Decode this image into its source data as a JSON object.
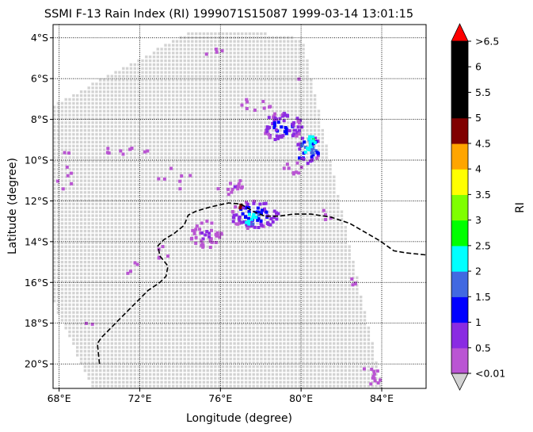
{
  "chart_data": {
    "type": "heatmap",
    "title": "SSMI F-13 Rain Index (RI) 1999071S15087 1999-03-14 13:01:15",
    "xlabel": "Longitude (degree)",
    "ylabel": "Latitude (degree)",
    "xlim": [
      67.7,
      86.2
    ],
    "ylim": [
      -21.2,
      -3.35
    ],
    "x_ticks": [
      {
        "value": 68,
        "label": "68°E"
      },
      {
        "value": 72,
        "label": "72°E"
      },
      {
        "value": 76,
        "label": "76°E"
      },
      {
        "value": 80,
        "label": "80°E"
      },
      {
        "value": 84,
        "label": "84°E"
      }
    ],
    "y_ticks": [
      {
        "value": -4,
        "label": "4°S"
      },
      {
        "value": -6,
        "label": "6°S"
      },
      {
        "value": -8,
        "label": "8°S"
      },
      {
        "value": -10,
        "label": "10°S"
      },
      {
        "value": -12,
        "label": "12°S"
      },
      {
        "value": -14,
        "label": "14°S"
      },
      {
        "value": -16,
        "label": "16°S"
      },
      {
        "value": -18,
        "label": "18°S"
      },
      {
        "value": -20,
        "label": "20°S"
      }
    ],
    "grid": true,
    "no_rain_color": "#d3d3d3",
    "colorbar": {
      "label": "RI",
      "bounds": [
        0.01,
        0.5,
        1,
        1.5,
        2,
        2.5,
        3,
        3.5,
        4,
        4.5,
        5,
        5.5,
        6,
        6.5
      ],
      "tick_labels": [
        "<0.01",
        "0.5",
        "1",
        "1.5",
        "2",
        "2.5",
        "3",
        "3.5",
        "4",
        "4.5",
        "5",
        "5.5",
        "6",
        ">6.5"
      ],
      "colors": [
        "#ba55d3",
        "#8a2be2",
        "#0000ff",
        "#4169e1",
        "#00ffff",
        "#00ff00",
        "#7fff00",
        "#ffff00",
        "#ffa500",
        "#800000",
        "#000000",
        "#000000",
        "#000000"
      ],
      "under_color": "#d3d3d3",
      "over_color": "#ff0000"
    },
    "swath": {
      "corners": [
        [
          67.7,
          -7.2
        ],
        [
          74.5,
          -3.6
        ],
        [
          77.5,
          -3.6
        ],
        [
          80.0,
          -4.0
        ],
        [
          84.0,
          -21.2
        ],
        [
          69.6,
          -21.2
        ],
        [
          67.7,
          -17.0
        ]
      ]
    },
    "coastline": [
      [
        70.0,
        -20.0
      ],
      [
        69.9,
        -19.0
      ],
      [
        70.1,
        -18.7
      ],
      [
        70.6,
        -18.2
      ],
      [
        71.2,
        -17.6
      ],
      [
        71.8,
        -17.0
      ],
      [
        72.4,
        -16.4
      ],
      [
        73.0,
        -16.0
      ],
      [
        73.3,
        -15.7
      ],
      [
        73.4,
        -15.2
      ],
      [
        73.0,
        -14.7
      ],
      [
        72.9,
        -14.2
      ],
      [
        73.2,
        -13.9
      ],
      [
        73.7,
        -13.6
      ],
      [
        74.2,
        -13.2
      ],
      [
        74.4,
        -12.7
      ],
      [
        74.8,
        -12.5
      ],
      [
        75.5,
        -12.3
      ],
      [
        76.4,
        -12.1
      ],
      [
        77.0,
        -12.15
      ],
      [
        77.6,
        -12.5
      ],
      [
        78.2,
        -12.75
      ],
      [
        78.9,
        -12.75
      ],
      [
        79.6,
        -12.65
      ],
      [
        80.5,
        -12.65
      ],
      [
        81.5,
        -12.8
      ],
      [
        82.4,
        -13.1
      ],
      [
        83.2,
        -13.55
      ],
      [
        83.9,
        -13.95
      ],
      [
        84.6,
        -14.45
      ],
      [
        85.2,
        -14.55
      ],
      [
        86.2,
        -14.65
      ]
    ],
    "rain_clusters": [
      {
        "lon": 79.0,
        "lat": -8.3,
        "dlon": 1.0,
        "dlat": 0.7,
        "count": 70,
        "ri": [
          0.2,
          1.6
        ]
      },
      {
        "lon": 80.3,
        "lat": -9.4,
        "dlon": 0.6,
        "dlat": 0.7,
        "count": 45,
        "ri": [
          0.3,
          2.6
        ]
      },
      {
        "lon": 80.5,
        "lat": -8.9,
        "dlon": 0.2,
        "dlat": 0.25,
        "count": 8,
        "ri": [
          2.0,
          2.8
        ]
      },
      {
        "lon": 77.6,
        "lat": -12.6,
        "dlon": 1.2,
        "dlat": 0.7,
        "count": 85,
        "ri": [
          0.2,
          1.8
        ]
      },
      {
        "lon": 77.4,
        "lat": -12.8,
        "dlon": 0.3,
        "dlat": 0.3,
        "count": 10,
        "ri": [
          1.9,
          2.4
        ]
      },
      {
        "lon": 76.9,
        "lat": -12.2,
        "dlon": 0.08,
        "dlat": 0.08,
        "count": 2,
        "ri": [
          4.6,
          4.9
        ]
      },
      {
        "lon": 75.2,
        "lat": -13.6,
        "dlon": 0.8,
        "dlat": 0.7,
        "count": 40,
        "ri": [
          0.1,
          0.7
        ]
      },
      {
        "lon": 76.6,
        "lat": -11.3,
        "dlon": 0.8,
        "dlat": 0.4,
        "count": 14,
        "ri": [
          0.1,
          0.6
        ]
      },
      {
        "lon": 77.7,
        "lat": -7.2,
        "dlon": 0.9,
        "dlat": 0.3,
        "count": 9,
        "ri": [
          0.1,
          0.5
        ]
      },
      {
        "lon": 79.5,
        "lat": -10.3,
        "dlon": 0.6,
        "dlat": 0.4,
        "count": 9,
        "ri": [
          0.1,
          0.6
        ]
      },
      {
        "lon": 71.2,
        "lat": -9.4,
        "dlon": 1.2,
        "dlat": 0.4,
        "count": 10,
        "ri": [
          0.1,
          0.5
        ]
      },
      {
        "lon": 68.3,
        "lat": -10.5,
        "dlon": 0.5,
        "dlat": 1.2,
        "count": 8,
        "ri": [
          0.1,
          0.5
        ]
      },
      {
        "lon": 73.5,
        "lat": -10.8,
        "dlon": 1.0,
        "dlat": 0.6,
        "count": 7,
        "ri": [
          0.1,
          0.5
        ]
      },
      {
        "lon": 83.4,
        "lat": -20.5,
        "dlon": 0.6,
        "dlat": 0.5,
        "count": 12,
        "ri": [
          0.1,
          0.5
        ]
      },
      {
        "lon": 82.5,
        "lat": -15.9,
        "dlon": 0.15,
        "dlat": 0.2,
        "count": 4,
        "ri": [
          0.1,
          0.6
        ]
      },
      {
        "lon": 73.0,
        "lat": -14.4,
        "dlon": 0.5,
        "dlat": 0.4,
        "count": 5,
        "ri": [
          0.1,
          0.5
        ]
      },
      {
        "lon": 71.5,
        "lat": -15.0,
        "dlon": 0.4,
        "dlat": 0.6,
        "count": 4,
        "ri": [
          0.1,
          0.5
        ]
      },
      {
        "lon": 75.5,
        "lat": -4.6,
        "dlon": 0.8,
        "dlat": 0.3,
        "count": 4,
        "ri": [
          0.1,
          0.5
        ]
      },
      {
        "lon": 79.9,
        "lat": -6.0,
        "dlon": 0.1,
        "dlat": 0.1,
        "count": 1,
        "ri": [
          0.1,
          0.4
        ]
      },
      {
        "lon": 69.4,
        "lat": -18.0,
        "dlon": 0.2,
        "dlat": 0.1,
        "count": 2,
        "ri": [
          0.1,
          0.4
        ]
      },
      {
        "lon": 81.2,
        "lat": -12.6,
        "dlon": 0.3,
        "dlat": 0.3,
        "count": 4,
        "ri": [
          0.1,
          0.5
        ]
      }
    ]
  }
}
